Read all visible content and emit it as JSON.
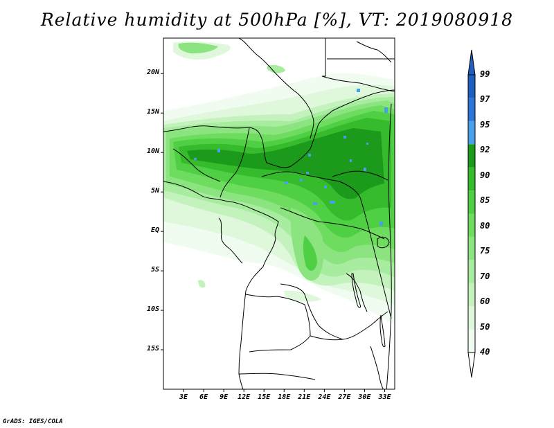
{
  "title": "Relative humidity at 500hPa [%], VT: 2019080918",
  "credit": "GrADS: IGES/COLA",
  "map": {
    "variable": "Relative humidity at 500hPa",
    "units": "%",
    "valid_time": "2019080918",
    "lat_labels": [
      "20N",
      "15N",
      "10N",
      "5N",
      "EQ",
      "5S",
      "10S",
      "15S"
    ],
    "lon_labels": [
      "3E",
      "6E",
      "9E",
      "12E",
      "15E",
      "18E",
      "21E",
      "24E",
      "27E",
      "30E",
      "33E"
    ],
    "lat_values": [
      20,
      15,
      10,
      5,
      0,
      -5,
      -10,
      -15
    ],
    "lon_values": [
      3,
      6,
      9,
      12,
      15,
      18,
      21,
      24,
      27,
      30,
      33
    ],
    "domain_lon": [
      0,
      34.5
    ],
    "domain_lat": [
      -20,
      24.5
    ]
  },
  "colorbar": {
    "labels": [
      "99",
      "97",
      "95",
      "92",
      "90",
      "85",
      "80",
      "75",
      "70",
      "60",
      "50",
      "40"
    ],
    "bins": [
      {
        "from": 40,
        "to": 50,
        "color": "#f0fcf0"
      },
      {
        "from": 50,
        "to": 60,
        "color": "#dff8dc"
      },
      {
        "from": 60,
        "to": 70,
        "color": "#c4f2bd"
      },
      {
        "from": 70,
        "to": 75,
        "color": "#a8ec9f"
      },
      {
        "from": 75,
        "to": 80,
        "color": "#8be47f"
      },
      {
        "from": 80,
        "to": 85,
        "color": "#6ddc5f"
      },
      {
        "from": 85,
        "to": 90,
        "color": "#4fcf43"
      },
      {
        "from": 90,
        "to": 92,
        "color": "#35bb2c"
      },
      {
        "from": 92,
        "to": 95,
        "color": "#1c9a1c"
      },
      {
        "from": 95,
        "to": 97,
        "color": "#4aa0e8"
      },
      {
        "from": 97,
        "to": 99,
        "color": "#2c74d8"
      },
      {
        "from": 99,
        "to": 100,
        "color": "#1e5fc0"
      }
    ],
    "over_color": "#1e5fc0",
    "under_color": "#ffffff"
  }
}
